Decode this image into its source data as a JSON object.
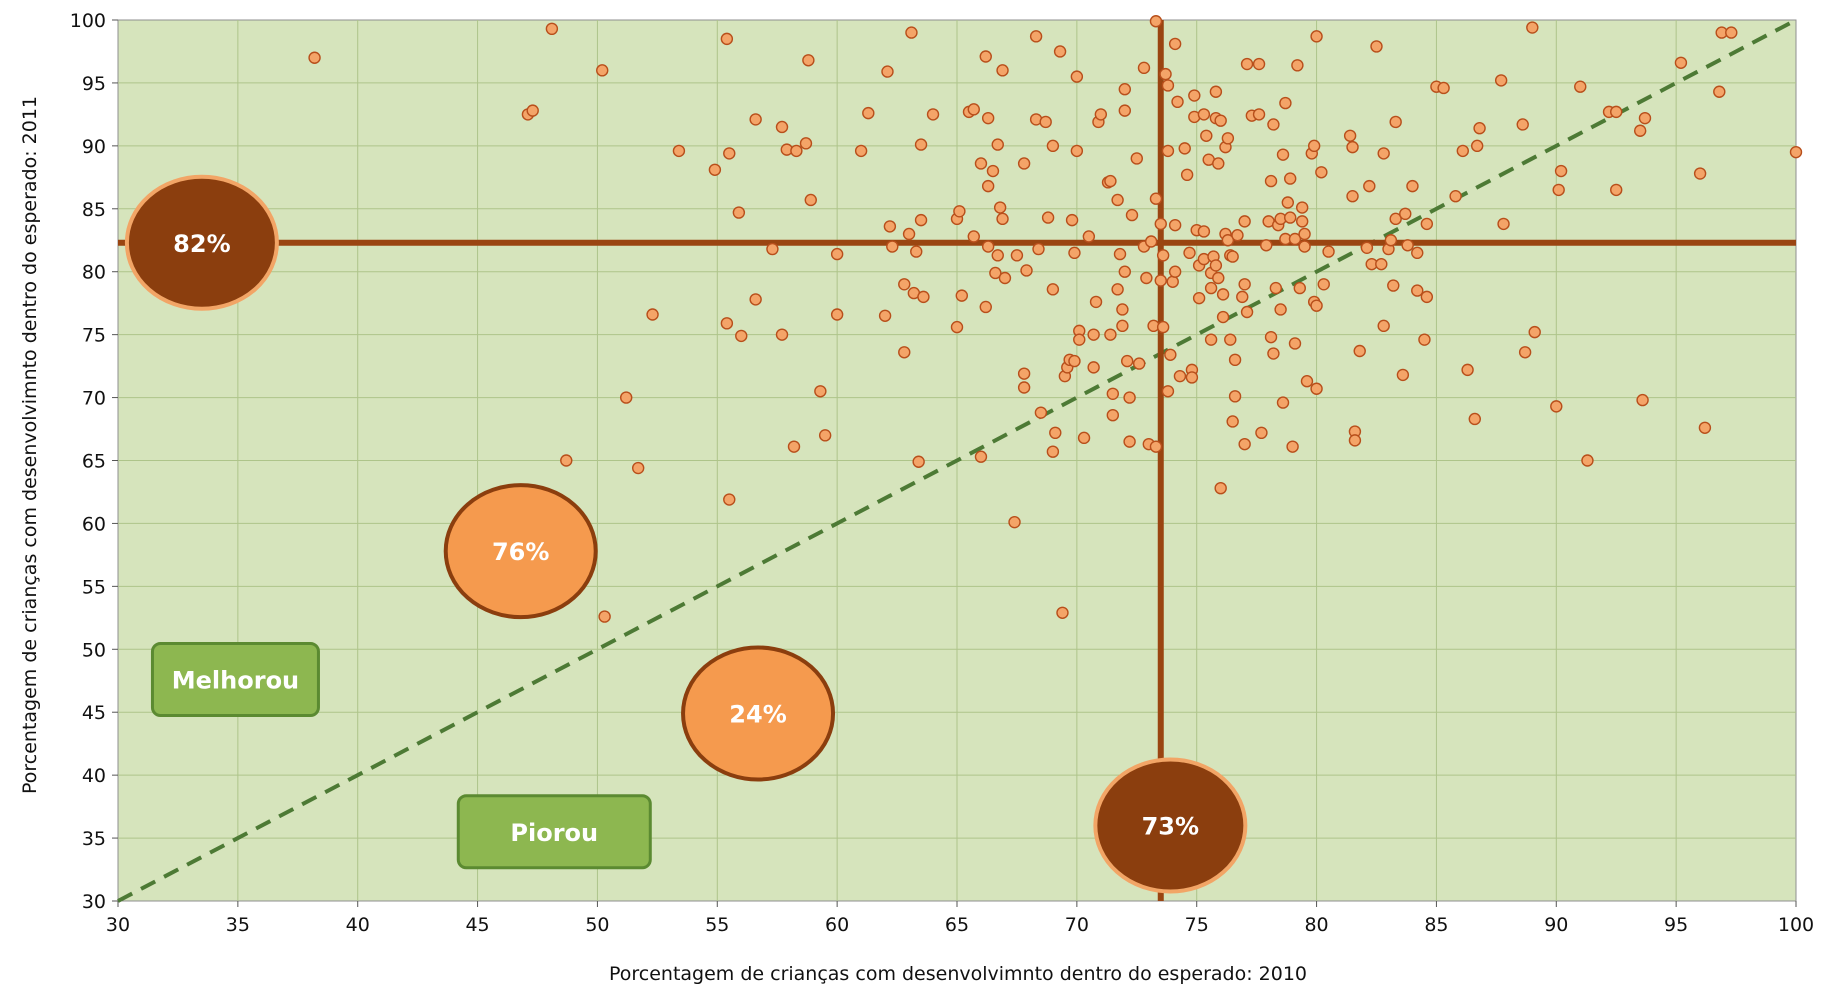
{
  "chart_data": {
    "type": "scatter",
    "xlabel": "Porcentagem de crianças com desenvolvimnto dentro do esperado: 2010",
    "ylabel": "Porcentagem de crianças com desenvolvimnto dentro do esperado: 2011",
    "xlim": [
      30,
      100
    ],
    "ylim": [
      30,
      100
    ],
    "x_ticks": [
      30,
      35,
      40,
      45,
      50,
      55,
      60,
      65,
      70,
      75,
      80,
      85,
      90,
      95,
      100
    ],
    "y_ticks": [
      30,
      35,
      40,
      45,
      50,
      55,
      60,
      65,
      70,
      75,
      80,
      85,
      90,
      95,
      100
    ],
    "grid": true,
    "colors": {
      "plot_background": "#d6e4bc",
      "grid_line": "#aec48a",
      "point_fill": "#f4a468",
      "point_stroke": "#b84f1b",
      "mean_line": "#9a4511",
      "diagonal": "#4d7a35",
      "bubble_dark": "#8b3e0e",
      "bubble_dark_stroke": "#f2a566",
      "bubble_light": "#f59a4e",
      "bubble_light_stroke": "#8b3e0e",
      "box_fill": "#8db750",
      "box_stroke": "#5b8a31"
    },
    "mean_x": 73.5,
    "mean_y": 82.3,
    "diagonal": {
      "from": [
        30,
        30
      ],
      "to": [
        100,
        100
      ],
      "style": "dashed"
    },
    "bubbles": [
      {
        "label": "82%",
        "x": 33.5,
        "y": 82.3,
        "style": "dark"
      },
      {
        "label": "76%",
        "x": 46.8,
        "y": 57.8,
        "style": "light"
      },
      {
        "label": "24%",
        "x": 56.7,
        "y": 44.9,
        "style": "light"
      },
      {
        "label": "73%",
        "x": 73.9,
        "y": 36.0,
        "style": "dark"
      }
    ],
    "annotations": [
      {
        "label": "Melhorou",
        "x": 34.9,
        "y": 47.6
      },
      {
        "label": "Piorou",
        "x": 48.2,
        "y": 35.5
      }
    ],
    "points": [
      [
        38.2,
        97.0
      ],
      [
        47.1,
        92.5
      ],
      [
        47.3,
        92.8
      ],
      [
        48.1,
        99.3
      ],
      [
        50.2,
        96.0
      ],
      [
        48.7,
        65.0
      ],
      [
        50.3,
        52.6
      ],
      [
        51.2,
        70.0
      ],
      [
        51.7,
        64.4
      ],
      [
        52.3,
        76.6
      ],
      [
        53.4,
        89.6
      ],
      [
        54.9,
        88.1
      ],
      [
        55.4,
        98.5
      ],
      [
        55.5,
        89.4
      ],
      [
        55.4,
        75.9
      ],
      [
        55.9,
        84.7
      ],
      [
        56.0,
        74.9
      ],
      [
        55.5,
        61.9
      ],
      [
        56.6,
        92.1
      ],
      [
        56.6,
        77.8
      ],
      [
        57.3,
        81.8
      ],
      [
        57.7,
        91.5
      ],
      [
        57.9,
        89.7
      ],
      [
        58.3,
        89.6
      ],
      [
        58.7,
        90.2
      ],
      [
        58.8,
        96.8
      ],
      [
        58.9,
        85.7
      ],
      [
        57.7,
        75.0
      ],
      [
        58.2,
        66.1
      ],
      [
        59.3,
        70.5
      ],
      [
        59.5,
        67.0
      ],
      [
        60.0,
        81.4
      ],
      [
        60.0,
        76.6
      ],
      [
        61.0,
        89.6
      ],
      [
        61.3,
        92.6
      ],
      [
        62.1,
        95.9
      ],
      [
        62.2,
        83.6
      ],
      [
        62.3,
        82.0
      ],
      [
        62.0,
        76.5
      ],
      [
        62.8,
        79.0
      ],
      [
        62.8,
        73.6
      ],
      [
        63.0,
        83.0
      ],
      [
        63.1,
        99.0
      ],
      [
        63.3,
        81.6
      ],
      [
        63.2,
        78.3
      ],
      [
        63.5,
        84.1
      ],
      [
        63.5,
        90.1
      ],
      [
        63.6,
        78.0
      ],
      [
        63.4,
        64.9
      ],
      [
        64.0,
        92.5
      ],
      [
        65.0,
        84.2
      ],
      [
        65.1,
        84.8
      ],
      [
        65.0,
        75.6
      ],
      [
        65.2,
        78.1
      ],
      [
        65.5,
        92.7
      ],
      [
        65.7,
        92.9
      ],
      [
        65.7,
        82.8
      ],
      [
        66.0,
        88.6
      ],
      [
        66.0,
        65.3
      ],
      [
        66.2,
        97.1
      ],
      [
        66.2,
        77.2
      ],
      [
        66.3,
        86.8
      ],
      [
        66.3,
        82.0
      ],
      [
        66.3,
        92.2
      ],
      [
        66.5,
        88.0
      ],
      [
        66.6,
        79.9
      ],
      [
        66.7,
        81.3
      ],
      [
        66.7,
        90.1
      ],
      [
        66.8,
        85.1
      ],
      [
        66.9,
        84.2
      ],
      [
        66.9,
        96.0
      ],
      [
        67.0,
        79.5
      ],
      [
        67.4,
        60.1
      ],
      [
        67.5,
        81.3
      ],
      [
        67.8,
        88.6
      ],
      [
        67.8,
        71.9
      ],
      [
        67.8,
        70.8
      ],
      [
        67.9,
        80.1
      ],
      [
        68.3,
        98.7
      ],
      [
        68.3,
        92.1
      ],
      [
        68.4,
        81.8
      ],
      [
        68.5,
        68.8
      ],
      [
        68.7,
        91.9
      ],
      [
        68.8,
        84.3
      ],
      [
        69.0,
        78.6
      ],
      [
        69.0,
        90.0
      ],
      [
        69.1,
        67.2
      ],
      [
        69.0,
        65.7
      ],
      [
        69.3,
        97.5
      ],
      [
        69.4,
        52.9
      ],
      [
        69.5,
        71.7
      ],
      [
        69.6,
        72.4
      ],
      [
        69.7,
        73.0
      ],
      [
        69.8,
        84.1
      ],
      [
        69.9,
        81.5
      ],
      [
        70.0,
        89.6
      ],
      [
        69.9,
        72.9
      ],
      [
        70.0,
        95.5
      ],
      [
        70.1,
        75.3
      ],
      [
        70.1,
        74.6
      ],
      [
        70.3,
        66.8
      ],
      [
        70.5,
        82.8
      ],
      [
        70.7,
        75.0
      ],
      [
        70.7,
        72.4
      ],
      [
        70.8,
        77.6
      ],
      [
        70.9,
        91.9
      ],
      [
        71.0,
        92.5
      ],
      [
        71.3,
        87.1
      ],
      [
        71.4,
        87.2
      ],
      [
        71.4,
        75.0
      ],
      [
        71.5,
        70.3
      ],
      [
        71.5,
        68.6
      ],
      [
        71.7,
        78.6
      ],
      [
        71.7,
        85.7
      ],
      [
        71.8,
        81.4
      ],
      [
        71.9,
        77.0
      ],
      [
        71.9,
        75.7
      ],
      [
        72.0,
        94.5
      ],
      [
        72.0,
        92.8
      ],
      [
        72.0,
        80.0
      ],
      [
        72.1,
        72.9
      ],
      [
        72.2,
        66.5
      ],
      [
        72.2,
        70.0
      ],
      [
        72.3,
        84.5
      ],
      [
        72.5,
        89.0
      ],
      [
        72.6,
        72.7
      ],
      [
        72.8,
        96.2
      ],
      [
        72.8,
        82.0
      ],
      [
        72.9,
        79.5
      ],
      [
        73.0,
        66.3
      ],
      [
        73.1,
        82.4
      ],
      [
        73.2,
        75.7
      ],
      [
        73.3,
        66.1
      ],
      [
        73.3,
        99.9
      ],
      [
        73.3,
        85.8
      ],
      [
        73.5,
        83.8
      ],
      [
        73.5,
        79.3
      ],
      [
        73.6,
        75.6
      ],
      [
        73.6,
        81.3
      ],
      [
        73.7,
        95.7
      ],
      [
        73.8,
        94.8
      ],
      [
        73.8,
        89.6
      ],
      [
        73.8,
        70.5
      ],
      [
        73.9,
        73.4
      ],
      [
        74.0,
        79.2
      ],
      [
        74.1,
        80.0
      ],
      [
        74.1,
        98.1
      ],
      [
        74.1,
        83.7
      ],
      [
        74.2,
        93.5
      ],
      [
        74.3,
        71.7
      ],
      [
        74.5,
        89.8
      ],
      [
        74.6,
        87.7
      ],
      [
        74.7,
        81.5
      ],
      [
        74.8,
        72.2
      ],
      [
        74.8,
        71.6
      ],
      [
        74.9,
        94.0
      ],
      [
        74.9,
        92.3
      ],
      [
        75.0,
        83.3
      ],
      [
        75.1,
        80.5
      ],
      [
        75.1,
        77.9
      ],
      [
        75.3,
        92.5
      ],
      [
        75.3,
        81.0
      ],
      [
        75.3,
        83.2
      ],
      [
        75.4,
        90.8
      ],
      [
        75.5,
        88.9
      ],
      [
        75.6,
        74.6
      ],
      [
        75.6,
        78.7
      ],
      [
        75.6,
        79.9
      ],
      [
        75.7,
        81.2
      ],
      [
        75.8,
        94.3
      ],
      [
        75.8,
        80.5
      ],
      [
        75.8,
        92.2
      ],
      [
        75.9,
        79.5
      ],
      [
        75.9,
        88.6
      ],
      [
        76.0,
        62.8
      ],
      [
        76.0,
        92.0
      ],
      [
        76.1,
        78.2
      ],
      [
        76.1,
        76.4
      ],
      [
        76.2,
        83.0
      ],
      [
        76.2,
        89.9
      ],
      [
        76.3,
        82.5
      ],
      [
        76.3,
        90.6
      ],
      [
        76.4,
        81.3
      ],
      [
        76.4,
        74.6
      ],
      [
        76.5,
        68.1
      ],
      [
        76.5,
        81.2
      ],
      [
        76.6,
        73.0
      ],
      [
        76.6,
        70.1
      ],
      [
        76.7,
        82.9
      ],
      [
        76.9,
        78.0
      ],
      [
        77.0,
        66.3
      ],
      [
        77.0,
        84.0
      ],
      [
        77.0,
        79.0
      ],
      [
        77.1,
        76.8
      ],
      [
        77.1,
        96.5
      ],
      [
        77.3,
        92.4
      ],
      [
        77.6,
        92.5
      ],
      [
        77.6,
        96.5
      ],
      [
        77.7,
        67.2
      ],
      [
        77.9,
        82.1
      ],
      [
        78.0,
        84.0
      ],
      [
        78.1,
        87.2
      ],
      [
        78.1,
        74.8
      ],
      [
        78.2,
        73.5
      ],
      [
        78.2,
        91.7
      ],
      [
        78.3,
        78.7
      ],
      [
        78.4,
        83.7
      ],
      [
        78.5,
        84.2
      ],
      [
        78.5,
        77.0
      ],
      [
        78.6,
        69.6
      ],
      [
        78.6,
        89.3
      ],
      [
        78.7,
        93.4
      ],
      [
        78.7,
        82.6
      ],
      [
        78.8,
        85.5
      ],
      [
        78.9,
        87.4
      ],
      [
        78.9,
        84.3
      ],
      [
        79.0,
        66.1
      ],
      [
        79.1,
        74.3
      ],
      [
        79.1,
        82.6
      ],
      [
        79.2,
        96.4
      ],
      [
        79.3,
        78.7
      ],
      [
        79.4,
        85.1
      ],
      [
        79.4,
        84.0
      ],
      [
        79.5,
        83.0
      ],
      [
        79.5,
        82.0
      ],
      [
        79.6,
        71.3
      ],
      [
        79.8,
        89.4
      ],
      [
        79.9,
        77.6
      ],
      [
        79.9,
        90.0
      ],
      [
        80.0,
        77.3
      ],
      [
        80.0,
        98.7
      ],
      [
        80.0,
        70.7
      ],
      [
        80.2,
        87.9
      ],
      [
        80.3,
        79.0
      ],
      [
        80.5,
        81.6
      ],
      [
        81.4,
        90.8
      ],
      [
        81.5,
        89.9
      ],
      [
        81.5,
        86.0
      ],
      [
        81.6,
        67.3
      ],
      [
        81.6,
        66.6
      ],
      [
        81.8,
        73.7
      ],
      [
        82.1,
        81.9
      ],
      [
        82.2,
        86.8
      ],
      [
        82.3,
        80.6
      ],
      [
        82.5,
        97.9
      ],
      [
        82.7,
        80.6
      ],
      [
        82.8,
        89.4
      ],
      [
        82.8,
        75.7
      ],
      [
        83.0,
        81.8
      ],
      [
        83.1,
        82.5
      ],
      [
        83.2,
        78.9
      ],
      [
        83.3,
        91.9
      ],
      [
        83.3,
        84.2
      ],
      [
        83.6,
        71.8
      ],
      [
        83.7,
        84.6
      ],
      [
        83.8,
        82.1
      ],
      [
        84.0,
        86.8
      ],
      [
        84.2,
        81.5
      ],
      [
        84.2,
        78.5
      ],
      [
        84.5,
        74.6
      ],
      [
        84.6,
        83.8
      ],
      [
        84.6,
        78.0
      ],
      [
        85.0,
        94.7
      ],
      [
        85.3,
        94.6
      ],
      [
        85.8,
        86.0
      ],
      [
        86.1,
        89.6
      ],
      [
        86.3,
        72.2
      ],
      [
        86.6,
        68.3
      ],
      [
        86.7,
        90.0
      ],
      [
        86.8,
        91.4
      ],
      [
        87.7,
        95.2
      ],
      [
        87.8,
        83.8
      ],
      [
        88.6,
        91.7
      ],
      [
        88.7,
        73.6
      ],
      [
        89.0,
        99.4
      ],
      [
        89.1,
        75.2
      ],
      [
        90.0,
        69.3
      ],
      [
        90.1,
        86.5
      ],
      [
        90.2,
        88.0
      ],
      [
        91.0,
        94.7
      ],
      [
        91.3,
        65.0
      ],
      [
        92.2,
        92.7
      ],
      [
        92.5,
        92.7
      ],
      [
        92.5,
        86.5
      ],
      [
        93.5,
        91.2
      ],
      [
        93.6,
        69.8
      ],
      [
        93.7,
        92.2
      ],
      [
        95.2,
        96.6
      ],
      [
        96.0,
        87.8
      ],
      [
        96.2,
        67.6
      ],
      [
        96.8,
        94.3
      ],
      [
        96.9,
        99.0
      ],
      [
        97.3,
        99.0
      ],
      [
        100.0,
        89.5
      ]
    ]
  }
}
